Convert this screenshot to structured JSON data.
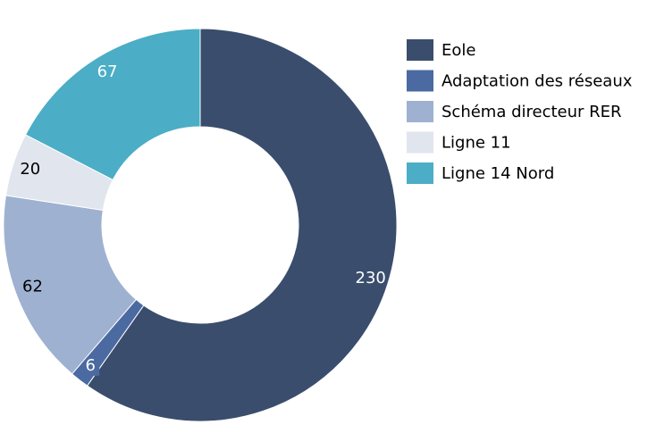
{
  "chart_data": {
    "type": "donut",
    "categories": [
      "Eole",
      "Adaptation des réseaux",
      "Schéma directeur RER",
      "Ligne 11",
      "Ligne 14 Nord"
    ],
    "values": [
      230,
      6,
      62,
      20,
      67
    ],
    "colors": [
      "#3a4d6d",
      "#4a6aa1",
      "#9eb1d1",
      "#e0e5ee",
      "#4badc6"
    ],
    "legend": "right"
  }
}
